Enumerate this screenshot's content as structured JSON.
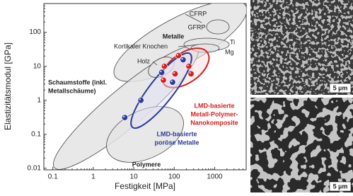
{
  "chart_data": {
    "type": "scatter",
    "xlabel": "Festigkeit [MPa]",
    "ylabel": "Elastizitätsmodul [GPa]",
    "xscale": "log",
    "yscale": "log",
    "xlim": [
      0.06,
      6000
    ],
    "ylim": [
      0.009,
      700
    ],
    "xticks": [
      0.1,
      1,
      10,
      100,
      1000
    ],
    "yticks": [
      0.01,
      0.1,
      1,
      10,
      100
    ],
    "series": [
      {
        "color": "#2b3a9c",
        "x": [
          6,
          15,
          49,
          91,
          166
        ],
        "values": [
          0.31,
          1.0,
          6.6,
          3.4,
          15.5
        ]
      },
      {
        "color": "#d42020",
        "x": [
          57,
          105,
          230,
          260,
          127,
          54
        ],
        "values": [
          10,
          6,
          10,
          6,
          20.6,
          3.9
        ]
      }
    ],
    "annotations": [
      {
        "lines": [
          "CFRP"
        ],
        "color": "#222"
      },
      {
        "lines": [
          "GFRP"
        ],
        "color": "#222"
      },
      {
        "lines": [
          "Metalle"
        ],
        "color": "#222",
        "bold": true
      },
      {
        "lines": [
          "Kortikaler Knochen"
        ],
        "color": "#222"
      },
      {
        "lines": [
          "Ti"
        ],
        "color": "#222"
      },
      {
        "lines": [
          "Mg"
        ],
        "color": "#222"
      },
      {
        "lines": [
          "Holz"
        ],
        "color": "#222"
      },
      {
        "lines": [
          "Schaumstoffe (inkl.",
          "Metallschäume)"
        ],
        "color": "#222",
        "bold": true
      },
      {
        "lines": [
          "Polymere"
        ],
        "color": "#222",
        "bold": true
      },
      {
        "lines": [
          "LMD-basierte",
          "poröse Metalle"
        ],
        "color": "#2b3a9c",
        "bold": true
      },
      {
        "lines": [
          "LMD-basierte",
          "Metall-Polymer-",
          "Nanokomposite"
        ],
        "color": "#d42020",
        "bold": true
      }
    ]
  },
  "images": [
    {
      "scale_label": "5 µm"
    },
    {
      "scale_label": "5 µm"
    }
  ]
}
